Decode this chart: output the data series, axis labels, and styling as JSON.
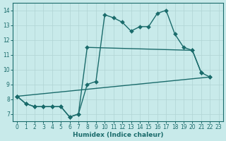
{
  "bg_color": "#c8eaea",
  "line_color": "#1a6b6b",
  "grid_color": "#b0d4d4",
  "xlabel": "Humidex (Indice chaleur)",
  "xlim": [
    -0.5,
    23.5
  ],
  "ylim": [
    6.5,
    14.5
  ],
  "xticks": [
    0,
    1,
    2,
    3,
    4,
    5,
    6,
    7,
    8,
    9,
    10,
    11,
    12,
    13,
    14,
    15,
    16,
    17,
    18,
    19,
    20,
    21,
    22,
    23
  ],
  "yticks": [
    7,
    8,
    9,
    10,
    11,
    12,
    13,
    14
  ],
  "curve1_x": [
    0,
    1,
    2,
    3,
    4,
    5,
    6,
    7,
    8,
    9,
    10,
    11,
    12,
    13,
    14,
    15,
    16,
    17,
    18,
    19,
    20,
    21
  ],
  "curve1_y": [
    8.2,
    7.7,
    7.5,
    7.5,
    7.5,
    7.5,
    6.8,
    7.0,
    9.0,
    9.2,
    13.7,
    13.5,
    13.2,
    12.6,
    12.9,
    12.9,
    13.8,
    14.0,
    12.4,
    11.5,
    11.3,
    9.8
  ],
  "curve2_x": [
    0,
    1,
    2,
    3,
    4,
    5,
    6,
    7,
    8,
    20,
    21,
    22
  ],
  "curve2_y": [
    8.2,
    7.7,
    7.5,
    7.5,
    7.5,
    7.5,
    6.8,
    7.0,
    11.5,
    11.3,
    9.8,
    9.5
  ],
  "curve3_x": [
    0,
    22
  ],
  "curve3_y": [
    8.2,
    9.5
  ],
  "lw": 1.0,
  "ms": 3.0
}
